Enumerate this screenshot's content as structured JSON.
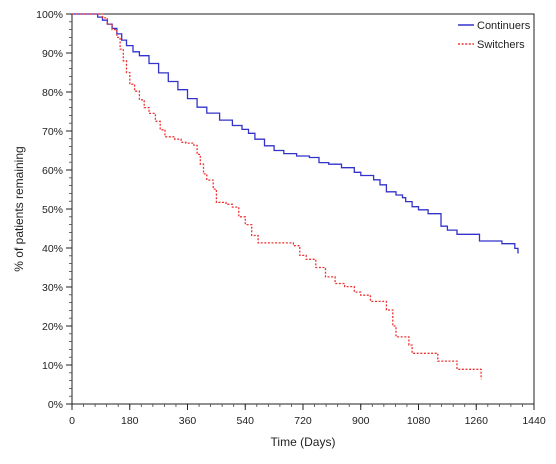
{
  "chart_data": {
    "type": "line",
    "step": true,
    "xlabel": "Time (Days)",
    "ylabel": "% of patients remaining",
    "xlim": [
      0,
      1440
    ],
    "ylim": [
      0,
      100
    ],
    "x_ticks": [
      0,
      180,
      360,
      540,
      720,
      900,
      1080,
      1260,
      1440
    ],
    "y_ticks": [
      0,
      10,
      20,
      30,
      40,
      50,
      60,
      70,
      80,
      90,
      100
    ],
    "y_tick_labels": [
      "0%",
      "10%",
      "20%",
      "30%",
      "40%",
      "50%",
      "60%",
      "70%",
      "80%",
      "90%",
      "100%"
    ],
    "grid": false,
    "legend_position": "top-right",
    "series": [
      {
        "name": "Continuers",
        "color": "#3333cc",
        "style": "solid",
        "points": [
          [
            0,
            100
          ],
          [
            75,
            100
          ],
          [
            80,
            99.2
          ],
          [
            95,
            98.4
          ],
          [
            110,
            97.4
          ],
          [
            125,
            96.3
          ],
          [
            140,
            94.9
          ],
          [
            155,
            93.3
          ],
          [
            170,
            91.9
          ],
          [
            190,
            90.3
          ],
          [
            210,
            89.3
          ],
          [
            240,
            87.3
          ],
          [
            270,
            84.9
          ],
          [
            300,
            82.7
          ],
          [
            330,
            80.6
          ],
          [
            360,
            78.3
          ],
          [
            390,
            76.1
          ],
          [
            420,
            74.6
          ],
          [
            460,
            72.8
          ],
          [
            500,
            71.4
          ],
          [
            530,
            70.4
          ],
          [
            550,
            69.4
          ],
          [
            570,
            67.9
          ],
          [
            600,
            66.2
          ],
          [
            630,
            65.0
          ],
          [
            660,
            64.2
          ],
          [
            700,
            63.6
          ],
          [
            740,
            63.2
          ],
          [
            770,
            61.9
          ],
          [
            800,
            61.5
          ],
          [
            840,
            60.6
          ],
          [
            880,
            59.4
          ],
          [
            900,
            58.6
          ],
          [
            940,
            57.5
          ],
          [
            960,
            56.2
          ],
          [
            980,
            54.4
          ],
          [
            1010,
            53.6
          ],
          [
            1030,
            52.9
          ],
          [
            1040,
            51.9
          ],
          [
            1060,
            50.6
          ],
          [
            1080,
            49.8
          ],
          [
            1110,
            48.8
          ],
          [
            1140,
            48.8
          ],
          [
            1150,
            45.6
          ],
          [
            1170,
            44.6
          ],
          [
            1200,
            43.5
          ],
          [
            1260,
            43.5
          ],
          [
            1270,
            41.8
          ],
          [
            1300,
            41.8
          ],
          [
            1340,
            41.1
          ],
          [
            1370,
            41.1
          ],
          [
            1380,
            39.9
          ],
          [
            1390,
            38.6
          ]
        ]
      },
      {
        "name": "Switchers",
        "color": "#ee3333",
        "style": "dotted",
        "points": [
          [
            0,
            100
          ],
          [
            85,
            100
          ],
          [
            95,
            99.0
          ],
          [
            110,
            97.4
          ],
          [
            125,
            96.0
          ],
          [
            140,
            94.0
          ],
          [
            150,
            91.0
          ],
          [
            160,
            88.0
          ],
          [
            170,
            85.0
          ],
          [
            180,
            82.0
          ],
          [
            195,
            80.2
          ],
          [
            210,
            78.0
          ],
          [
            225,
            76.0
          ],
          [
            240,
            74.5
          ],
          [
            260,
            72.5
          ],
          [
            275,
            70.3
          ],
          [
            290,
            68.5
          ],
          [
            320,
            67.9
          ],
          [
            340,
            67.1
          ],
          [
            355,
            66.9
          ],
          [
            380,
            66.3
          ],
          [
            390,
            64.0
          ],
          [
            400,
            61.5
          ],
          [
            410,
            59.0
          ],
          [
            420,
            57.4
          ],
          [
            440,
            55.1
          ],
          [
            450,
            51.7
          ],
          [
            480,
            51.2
          ],
          [
            500,
            50.5
          ],
          [
            520,
            48.0
          ],
          [
            540,
            46.0
          ],
          [
            560,
            43.2
          ],
          [
            580,
            41.3
          ],
          [
            600,
            41.3
          ],
          [
            660,
            41.3
          ],
          [
            690,
            40.6
          ],
          [
            710,
            38.1
          ],
          [
            730,
            37.1
          ],
          [
            760,
            35.0
          ],
          [
            790,
            32.6
          ],
          [
            820,
            30.9
          ],
          [
            850,
            30.1
          ],
          [
            880,
            28.7
          ],
          [
            900,
            27.9
          ],
          [
            930,
            26.3
          ],
          [
            980,
            24.1
          ],
          [
            1000,
            20.0
          ],
          [
            1010,
            17.2
          ],
          [
            1050,
            15.1
          ],
          [
            1060,
            13.0
          ],
          [
            1100,
            13.0
          ],
          [
            1140,
            11.0
          ],
          [
            1170,
            11.0
          ],
          [
            1200,
            8.9
          ],
          [
            1260,
            8.9
          ],
          [
            1275,
            6.3
          ]
        ]
      }
    ]
  }
}
